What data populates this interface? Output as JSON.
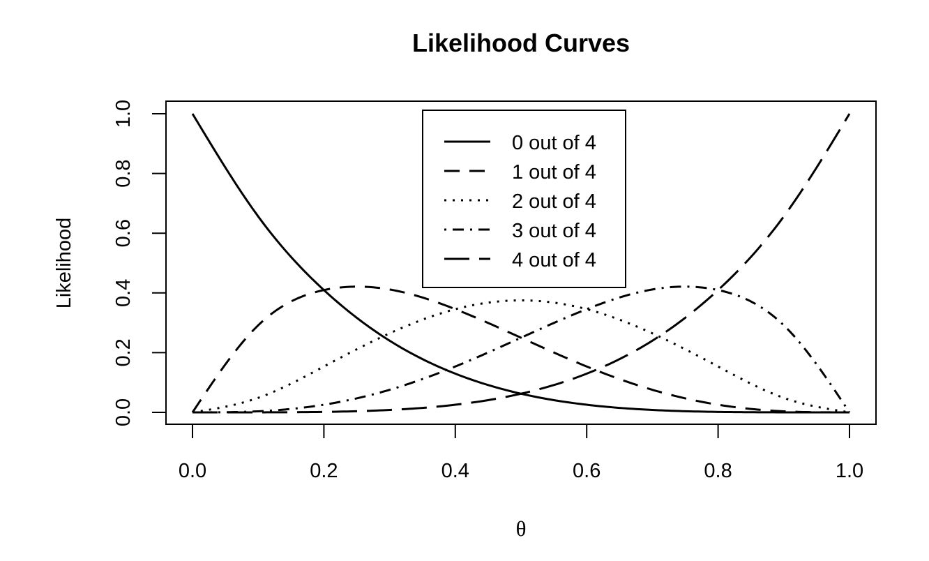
{
  "chart_data": {
    "type": "line",
    "title": "Likelihood Curves",
    "xlabel": "θ",
    "ylabel": "Likelihood",
    "xlim": [
      0,
      1
    ],
    "ylim": [
      0,
      1
    ],
    "x_ticks": [
      0.0,
      0.2,
      0.4,
      0.6,
      0.8,
      1.0
    ],
    "x_tick_labels": [
      "0.0",
      "0.2",
      "0.4",
      "0.6",
      "0.8",
      "1.0"
    ],
    "y_ticks": [
      0.0,
      0.2,
      0.4,
      0.6,
      0.8,
      1.0
    ],
    "y_tick_labels": [
      "0.0",
      "0.2",
      "0.4",
      "0.6",
      "0.8",
      "1.0"
    ],
    "grid": false,
    "legend_position": "top-center",
    "x": [
      0.0,
      0.1,
      0.2,
      0.3,
      0.4,
      0.5,
      0.6,
      0.7,
      0.8,
      0.9,
      1.0
    ],
    "series": [
      {
        "name": "0 out of 4",
        "line_style": "solid",
        "color": "#000000",
        "values": [
          1.0,
          0.6561,
          0.4096,
          0.2401,
          0.1296,
          0.0625,
          0.0256,
          0.0081,
          0.0016,
          0.0001,
          0.0
        ]
      },
      {
        "name": "1 out of 4",
        "line_style": "dashed",
        "color": "#000000",
        "values": [
          0.0,
          0.2916,
          0.4096,
          0.4116,
          0.3456,
          0.25,
          0.1536,
          0.0756,
          0.0256,
          0.0036,
          0.0
        ]
      },
      {
        "name": "2 out of 4",
        "line_style": "dotted",
        "color": "#000000",
        "values": [
          0.0,
          0.0486,
          0.1536,
          0.2646,
          0.3456,
          0.375,
          0.3456,
          0.2646,
          0.1536,
          0.0486,
          0.0
        ]
      },
      {
        "name": "3 out of 4",
        "line_style": "dotdash",
        "color": "#000000",
        "values": [
          0.0,
          0.0036,
          0.0256,
          0.0756,
          0.1536,
          0.25,
          0.3456,
          0.4116,
          0.4096,
          0.2916,
          0.0
        ]
      },
      {
        "name": "4 out of 4",
        "line_style": "longdash",
        "color": "#000000",
        "values": [
          0.0,
          0.0001,
          0.0016,
          0.0081,
          0.0256,
          0.0625,
          0.1296,
          0.2401,
          0.4096,
          0.6561,
          1.0
        ]
      }
    ]
  }
}
